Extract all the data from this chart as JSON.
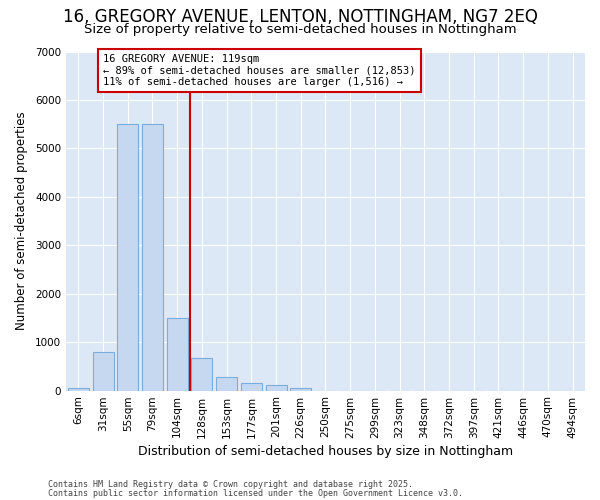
{
  "title": "16, GREGORY AVENUE, LENTON, NOTTINGHAM, NG7 2EQ",
  "subtitle": "Size of property relative to semi-detached houses in Nottingham",
  "xlabel": "Distribution of semi-detached houses by size in Nottingham",
  "ylabel": "Number of semi-detached properties",
  "categories": [
    "6sqm",
    "31sqm",
    "55sqm",
    "79sqm",
    "104sqm",
    "128sqm",
    "153sqm",
    "177sqm",
    "201sqm",
    "226sqm",
    "250sqm",
    "275sqm",
    "299sqm",
    "323sqm",
    "348sqm",
    "372sqm",
    "397sqm",
    "421sqm",
    "446sqm",
    "470sqm",
    "494sqm"
  ],
  "values": [
    60,
    800,
    5500,
    5500,
    1500,
    680,
    280,
    150,
    110,
    60,
    0,
    0,
    0,
    0,
    0,
    0,
    0,
    0,
    0,
    0,
    0
  ],
  "bar_color": "#c5d8f0",
  "bar_edge_color": "#7aadde",
  "vline_x_index": 5,
  "vline_color": "#cc0000",
  "annotation_text": "16 GREGORY AVENUE: 119sqm\n← 89% of semi-detached houses are smaller (12,853)\n11% of semi-detached houses are larger (1,516) →",
  "annotation_box_color": "#ffffff",
  "annotation_box_edge": "#cc0000",
  "footer1": "Contains HM Land Registry data © Crown copyright and database right 2025.",
  "footer2": "Contains public sector information licensed under the Open Government Licence v3.0.",
  "bg_color": "#ffffff",
  "plot_bg_color": "#dce8f5",
  "ylim": [
    0,
    7000
  ],
  "yticks": [
    0,
    1000,
    2000,
    3000,
    4000,
    5000,
    6000,
    7000
  ],
  "grid_color": "#ffffff",
  "title_fontsize": 12,
  "subtitle_fontsize": 9.5,
  "tick_fontsize": 7.5,
  "axis_label_fontsize": 9,
  "ylabel_fontsize": 8.5
}
